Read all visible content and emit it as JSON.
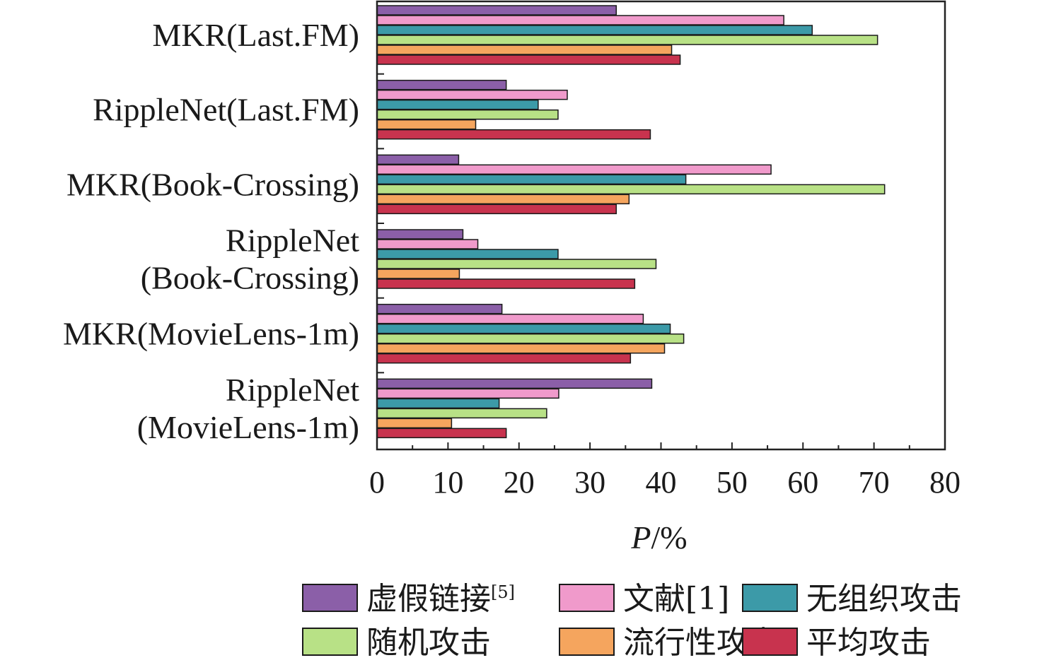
{
  "chart_data": {
    "type": "bar",
    "orientation": "horizontal",
    "categories": [
      [
        "MKR(Last.FM)"
      ],
      [
        "RippleNet(Last.FM)"
      ],
      [
        "MKR(Book-Crossing)"
      ],
      [
        "RippleNet",
        "(Book-Crossing)"
      ],
      [
        "MKR(MovieLens-1m)"
      ],
      [
        "RippleNet",
        "(MovieLens-1m)"
      ]
    ],
    "series": [
      {
        "name": "虚假链接",
        "sup": "[5]",
        "color": "#8B5FA8",
        "values": [
          33.7,
          18.2,
          11.5,
          12.1,
          17.6,
          38.7
        ]
      },
      {
        "name": "文献[1]",
        "sup": "",
        "color": "#F09ACB",
        "values": [
          57.3,
          26.8,
          55.5,
          14.2,
          37.5,
          25.6
        ]
      },
      {
        "name": "无组织攻击",
        "sup": "",
        "color": "#3C9AA8",
        "values": [
          61.3,
          22.7,
          43.5,
          25.5,
          41.3,
          17.2
        ]
      },
      {
        "name": "随机攻击",
        "sup": "",
        "color": "#B8E186",
        "values": [
          70.5,
          25.5,
          71.5,
          39.3,
          43.2,
          23.9
        ]
      },
      {
        "name": "流行性攻击",
        "sup": "",
        "color": "#F5A55E",
        "values": [
          41.5,
          13.9,
          35.5,
          11.6,
          40.5,
          10.5
        ]
      },
      {
        "name": "平均攻击",
        "sup": "",
        "color": "#C8334E",
        "values": [
          42.7,
          38.5,
          33.7,
          36.3,
          35.7,
          18.2
        ]
      }
    ],
    "xlabel_italic": "P",
    "xlabel_rest": "/%",
    "xlim": [
      0,
      80
    ],
    "xticks": [
      "0",
      "10",
      "20",
      "30",
      "40",
      "50",
      "60",
      "70",
      "80"
    ],
    "grid": false,
    "legend_position": "bottom"
  }
}
